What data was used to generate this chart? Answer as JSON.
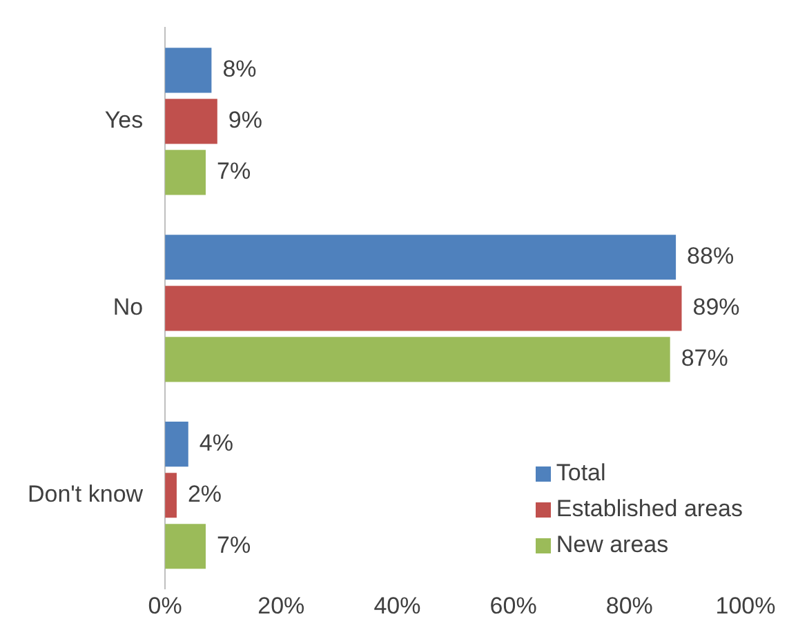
{
  "chart_data": {
    "type": "bar",
    "orientation": "horizontal",
    "categories": [
      "Yes",
      "No",
      "Don't know"
    ],
    "series": [
      {
        "name": "Total",
        "color": "#4f81bd",
        "values": [
          8,
          88,
          4
        ],
        "value_labels": [
          "8%",
          "88%",
          "4%"
        ]
      },
      {
        "name": "Established areas",
        "color": "#c0504d",
        "values": [
          9,
          89,
          2
        ],
        "value_labels": [
          "9%",
          "89%",
          "2%"
        ]
      },
      {
        "name": "New areas",
        "color": "#9bbb59",
        "values": [
          7,
          87,
          7
        ],
        "value_labels": [
          "7%",
          "87%",
          "7%"
        ]
      }
    ],
    "xlim": [
      0,
      100
    ],
    "xticks": [
      {
        "value": 0,
        "label": "0%"
      },
      {
        "value": 20,
        "label": "20%"
      },
      {
        "value": 40,
        "label": "40%"
      },
      {
        "value": 60,
        "label": "60%"
      },
      {
        "value": 80,
        "label": "80%"
      },
      {
        "value": 100,
        "label": "100%"
      }
    ],
    "grid": false,
    "legend": "bottom right"
  }
}
